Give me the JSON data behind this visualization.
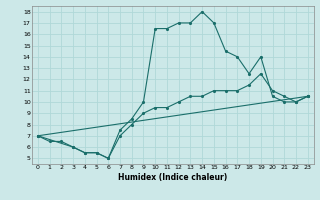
{
  "xlabel": "Humidex (Indice chaleur)",
  "ylabel": "",
  "xlim": [
    -0.5,
    23.5
  ],
  "ylim": [
    4.5,
    18.5
  ],
  "xticks": [
    0,
    1,
    2,
    3,
    4,
    5,
    6,
    7,
    8,
    9,
    10,
    11,
    12,
    13,
    14,
    15,
    16,
    17,
    18,
    19,
    20,
    21,
    22,
    23
  ],
  "yticks": [
    5,
    6,
    7,
    8,
    9,
    10,
    11,
    12,
    13,
    14,
    15,
    16,
    17,
    18
  ],
  "bg_color": "#cce8e8",
  "grid_color": "#b0d8d8",
  "line_color": "#1a6e6a",
  "curves": [
    {
      "x": [
        0,
        1,
        2,
        3,
        4,
        5,
        6,
        7,
        8,
        9,
        10,
        11,
        12,
        13,
        14,
        15,
        16,
        17,
        18,
        19,
        20,
        21,
        22,
        23
      ],
      "y": [
        7,
        6.5,
        6.5,
        6,
        5.5,
        5.5,
        5,
        7.5,
        8.5,
        10,
        16.5,
        16.5,
        17,
        17,
        18,
        17,
        14.5,
        14,
        12.5,
        14,
        10.5,
        10,
        10,
        10.5
      ]
    },
    {
      "x": [
        0,
        3,
        4,
        5,
        6,
        7,
        8,
        9,
        10,
        11,
        12,
        13,
        14,
        15,
        16,
        17,
        18,
        19,
        20,
        21,
        22,
        23
      ],
      "y": [
        7,
        6,
        5.5,
        5.5,
        5,
        7,
        8,
        9,
        9.5,
        9.5,
        10,
        10.5,
        10.5,
        11,
        11,
        11,
        11.5,
        12.5,
        11,
        10.5,
        10,
        10.5
      ]
    },
    {
      "x": [
        0,
        23
      ],
      "y": [
        7,
        10.5
      ]
    }
  ]
}
